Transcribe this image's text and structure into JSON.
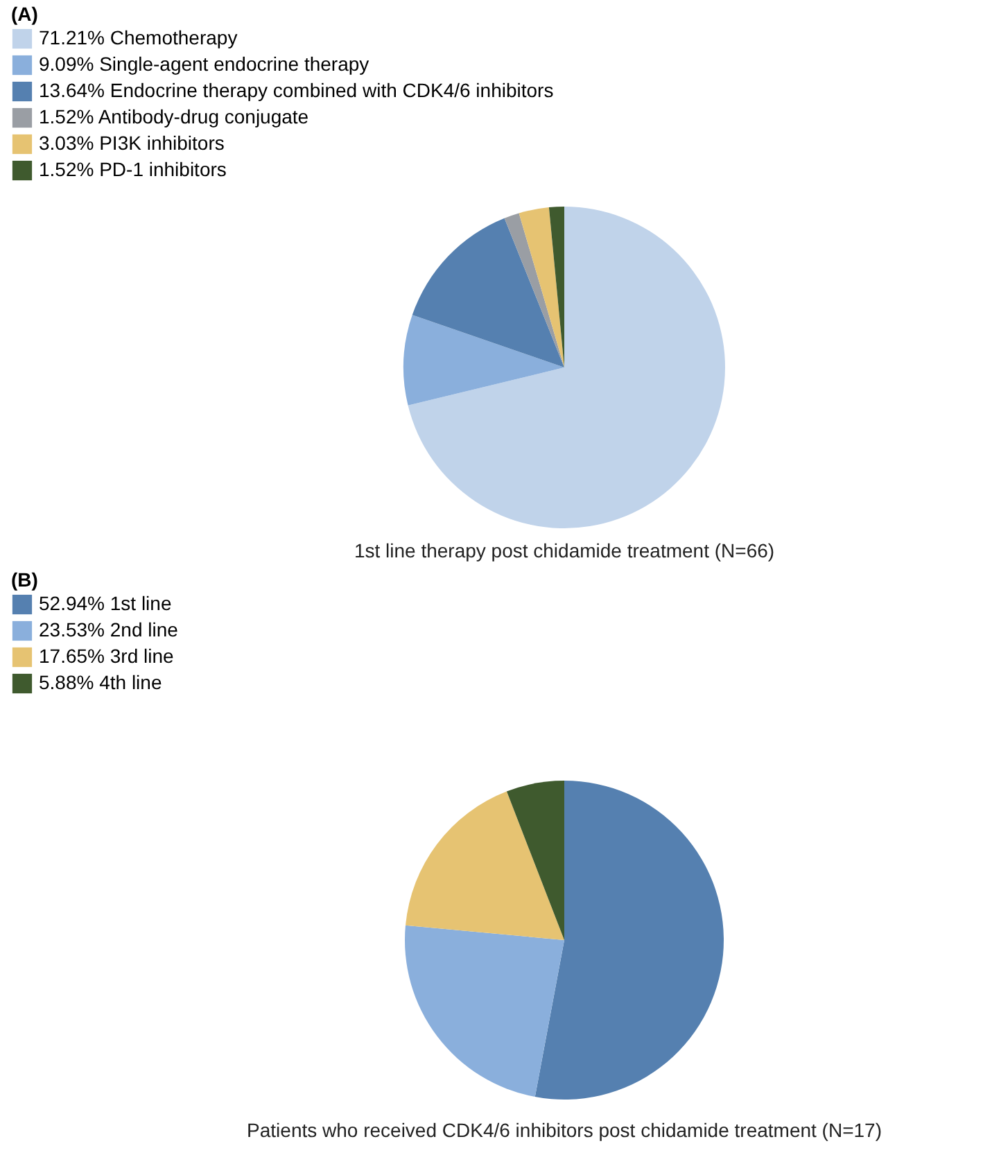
{
  "chart_data": [
    {
      "type": "pie",
      "title": "(A)",
      "categories": [
        "Chemotherapy",
        "Single-agent endocrine therapy",
        "Endocrine therapy combined with CDK4/6 inhibitors",
        "Antibody-drug conjugate",
        "PI3K inhibitors",
        "PD-1 inhibitors"
      ],
      "values": [
        71.21,
        9.09,
        13.64,
        1.52,
        3.03,
        1.52
      ],
      "value_labels": [
        "71.21%",
        "9.09%",
        "13.64%",
        "1.52%",
        "3.03%",
        "1.52%"
      ],
      "colors": [
        "#c0d3ea",
        "#8aafdc",
        "#5580b0",
        "#9a9ea4",
        "#e6c372",
        "#3f5a2e"
      ],
      "legend": "top left",
      "annotations": [
        "1st line therapy post chidamide treatment (N=66)"
      ]
    },
    {
      "type": "pie",
      "title": "(B)",
      "categories": [
        "1st line",
        "2nd line",
        "3rd line",
        "4th line"
      ],
      "values": [
        52.94,
        23.53,
        17.65,
        5.88
      ],
      "value_labels": [
        "52.94%",
        "23.53%",
        "17.65%",
        "5.88%"
      ],
      "colors": [
        "#5580b0",
        "#8aafdc",
        "#e6c372",
        "#3f5a2e"
      ],
      "legend": "top left",
      "annotations": [
        "Patients who received CDK4/6 inhibitors post chidamide treatment (N=17)"
      ]
    }
  ]
}
